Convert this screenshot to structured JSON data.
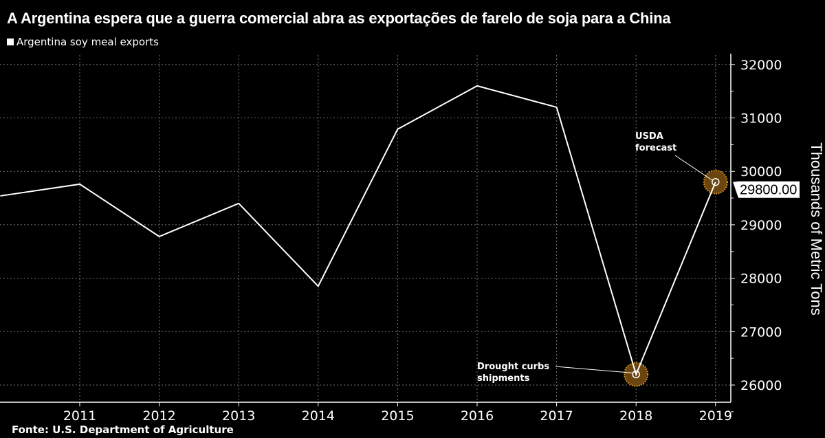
{
  "title": "A Argentina espera que a guerra comercial abra as exportações de farelo de soja para a China",
  "source": "Fonte:  U.S. Department of Agriculture",
  "colors": {
    "line": "#ffffff",
    "highlight": "#6b4510",
    "highlight_border": "#f5a623"
  },
  "chart_data": {
    "type": "line",
    "title": "A Argentina espera que a guerra comercial abra as exportações de farelo de soja para a China",
    "xlabel": "",
    "ylabel": "Thousands of Metric Tons",
    "ylim": [
      25700,
      32200
    ],
    "xlim": [
      2010,
      2019.2
    ],
    "grid": true,
    "legend": "top-left",
    "x_ticks": [
      "2011",
      "2012",
      "2013",
      "2014",
      "2015",
      "2016",
      "2017",
      "2018",
      "2019"
    ],
    "y_ticks": [
      "26000",
      "27000",
      "28000",
      "29000",
      "30000",
      "31000",
      "32000"
    ],
    "series": [
      {
        "name": "Argentina soy meal exports",
        "x": [
          2010,
          2011,
          2012,
          2013,
          2014,
          2015,
          2016,
          2017,
          2018,
          2019
        ],
        "values": [
          29540,
          29760,
          28780,
          29400,
          27850,
          30790,
          31600,
          31200,
          26200,
          29800
        ]
      }
    ],
    "last_value_label": "29800.00",
    "annotations": [
      {
        "text": [
          "USDA",
          "forecast"
        ],
        "x": 2019,
        "y": 29800
      },
      {
        "text": [
          "Drought curbs",
          "shipments"
        ],
        "x": 2018,
        "y": 26200
      }
    ]
  }
}
